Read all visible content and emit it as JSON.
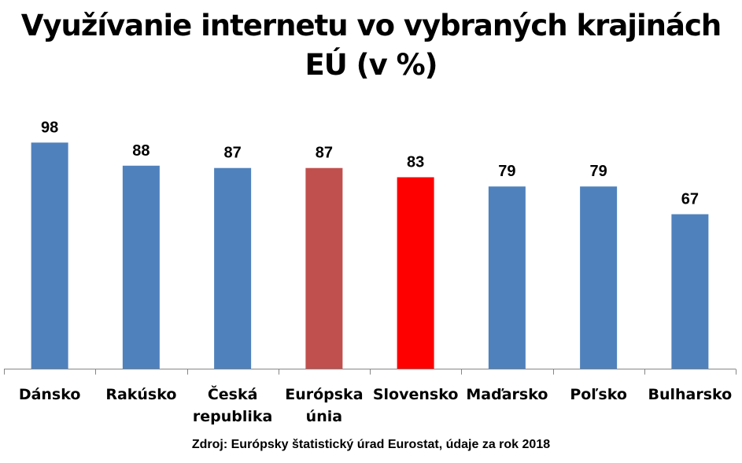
{
  "chart_data": {
    "type": "bar",
    "title_lines": [
      "Využívanie internetu vo vybraných krajinách",
      "EÚ (v %)"
    ],
    "categories": [
      [
        "Dánsko"
      ],
      [
        "Rakúsko"
      ],
      [
        "Česká",
        "republika"
      ],
      [
        "Európska",
        "únia"
      ],
      [
        "Slovensko"
      ],
      [
        "Maďarsko"
      ],
      [
        "Poľsko"
      ],
      [
        "Bulharsko"
      ]
    ],
    "values": [
      98,
      88,
      87,
      87,
      83,
      79,
      79,
      67
    ],
    "bar_colors": [
      "#4F81BD",
      "#4F81BD",
      "#4F81BD",
      "#C0504D",
      "#FF0000",
      "#4F81BD",
      "#4F81BD",
      "#4F81BD"
    ],
    "ylim": [
      0,
      100
    ],
    "y_axis_visible": false,
    "grid": false,
    "legend": "none",
    "source": "Zdroj: Európsky štatistický úrad Eurostat, údaje za rok 2018"
  }
}
